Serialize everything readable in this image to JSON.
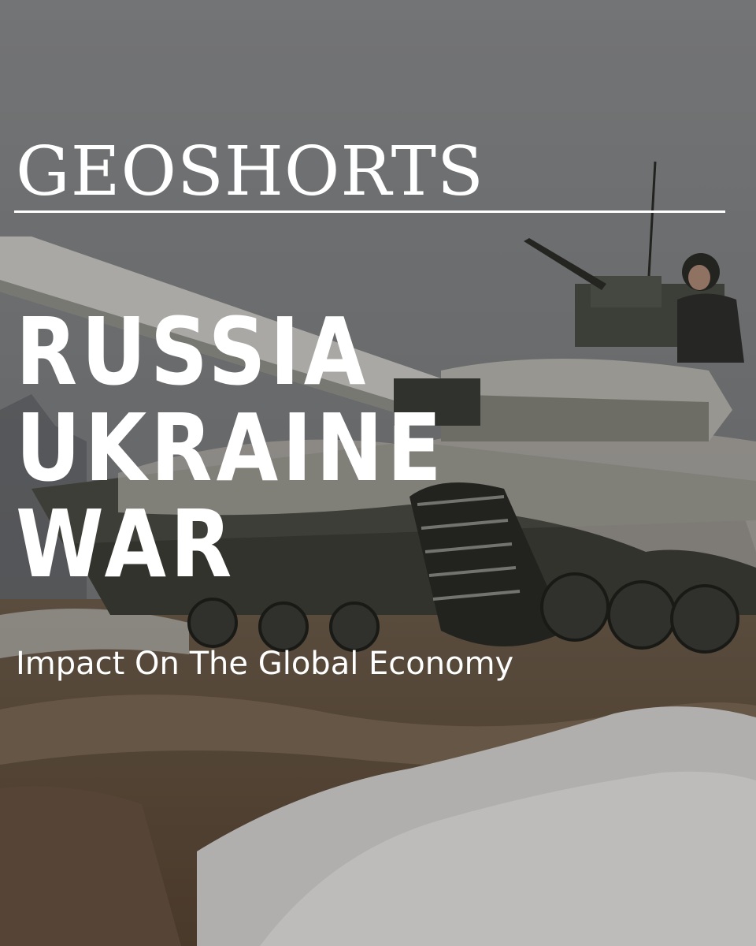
{
  "brand": "GEOSHORTS",
  "headline": [
    "RUSSIA",
    "UKRAINE",
    "WAR"
  ],
  "subtitle": "Impact On The Global Economy",
  "photo": "tank-in-snow-photo"
}
